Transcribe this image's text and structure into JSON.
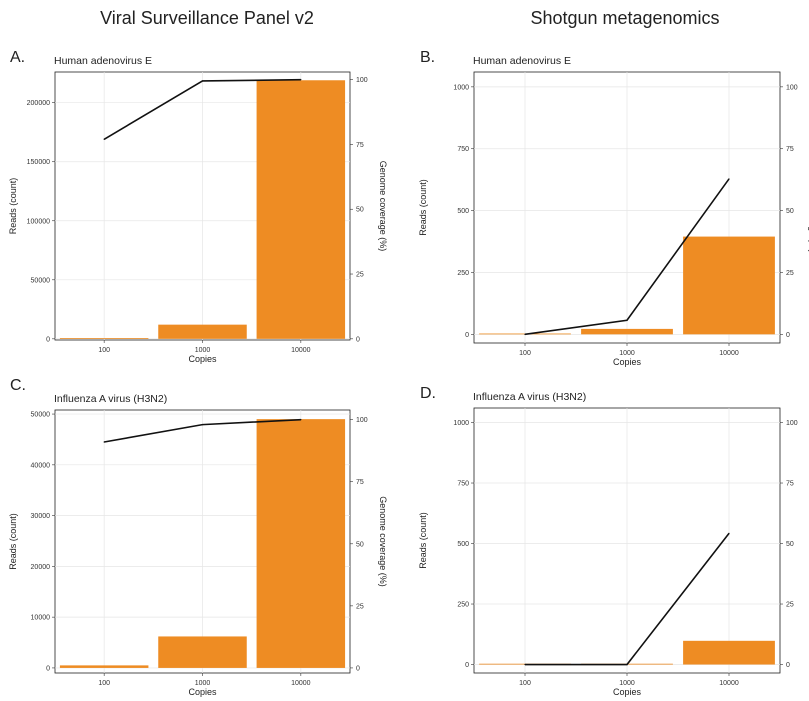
{
  "column_titles": [
    "Viral Surveillance Panel v2",
    "Shotgun metagenomics"
  ],
  "chart_data": [
    {
      "panel_label": "A.",
      "type": "bar",
      "title": "Human adenovirus E",
      "xlabel": "Copies",
      "ylabel": "Reads  (count)",
      "y2label": "Genome  coverage  (%)",
      "categories": [
        "100",
        "1000",
        "10000"
      ],
      "bar_color": "#EE8C23",
      "series": [
        {
          "values": [
            400,
            12000,
            219000
          ]
        },
        {
          "values": [
            77,
            99.5,
            100
          ]
        }
      ],
      "ylim": [
        0,
        226000
      ],
      "y_ticks": [
        0,
        50000,
        100000,
        150000,
        200000
      ],
      "y2_ticks": [
        0,
        25,
        50,
        75,
        100
      ],
      "grid": true
    },
    {
      "panel_label": "B.",
      "type": "bar",
      "title": "Human adenovirus E",
      "xlabel": "Copies",
      "ylabel": "Reads  (count)",
      "y2label": "Genome  coverage  (%)",
      "categories": [
        "100",
        "1000",
        "10000"
      ],
      "bar_color": "#EE8C23",
      "series": [
        {
          "values": [
            0,
            22,
            395
          ]
        },
        {
          "values": [
            0,
            5.7,
            62.8
          ]
        }
      ],
      "ylim": [
        0,
        1000
      ],
      "y_ticks": [
        0,
        250,
        500,
        750,
        1000
      ],
      "y2_ticks": [
        0,
        25,
        50,
        75,
        100
      ],
      "grid": true
    },
    {
      "panel_label": "C.",
      "type": "bar",
      "title": "Influenza A virus (H3N2)",
      "xlabel": "Copies",
      "ylabel": "Reads  (count)",
      "y2label": "Genome  coverage  (%)",
      "categories": [
        "100",
        "1000",
        "10000"
      ],
      "bar_color": "#EE8C23",
      "series": [
        {
          "values": [
            500,
            6200,
            49000
          ]
        },
        {
          "values": [
            91,
            98,
            100
          ]
        }
      ],
      "ylim": [
        0,
        50500
      ],
      "y_ticks": [
        0,
        10000,
        20000,
        30000,
        40000,
        50000
      ],
      "y2_ticks": [
        0,
        25,
        50,
        75,
        100
      ],
      "grid": true
    },
    {
      "panel_label": "D.",
      "type": "bar",
      "title": "Influenza A virus (H3N2)",
      "xlabel": "Copies",
      "ylabel": "Reads  (count)",
      "y2label": "",
      "categories": [
        "100",
        "1000",
        "10000"
      ],
      "bar_color": "#EE8C23",
      "series": [
        {
          "values": [
            0,
            0,
            98
          ]
        },
        {
          "values": [
            0,
            0,
            54.2
          ]
        }
      ],
      "ylim": [
        0,
        1000
      ],
      "y_ticks": [
        0,
        250,
        500,
        750,
        1000
      ],
      "y2_ticks": [
        0,
        25,
        50,
        75,
        100
      ],
      "grid": true
    }
  ]
}
